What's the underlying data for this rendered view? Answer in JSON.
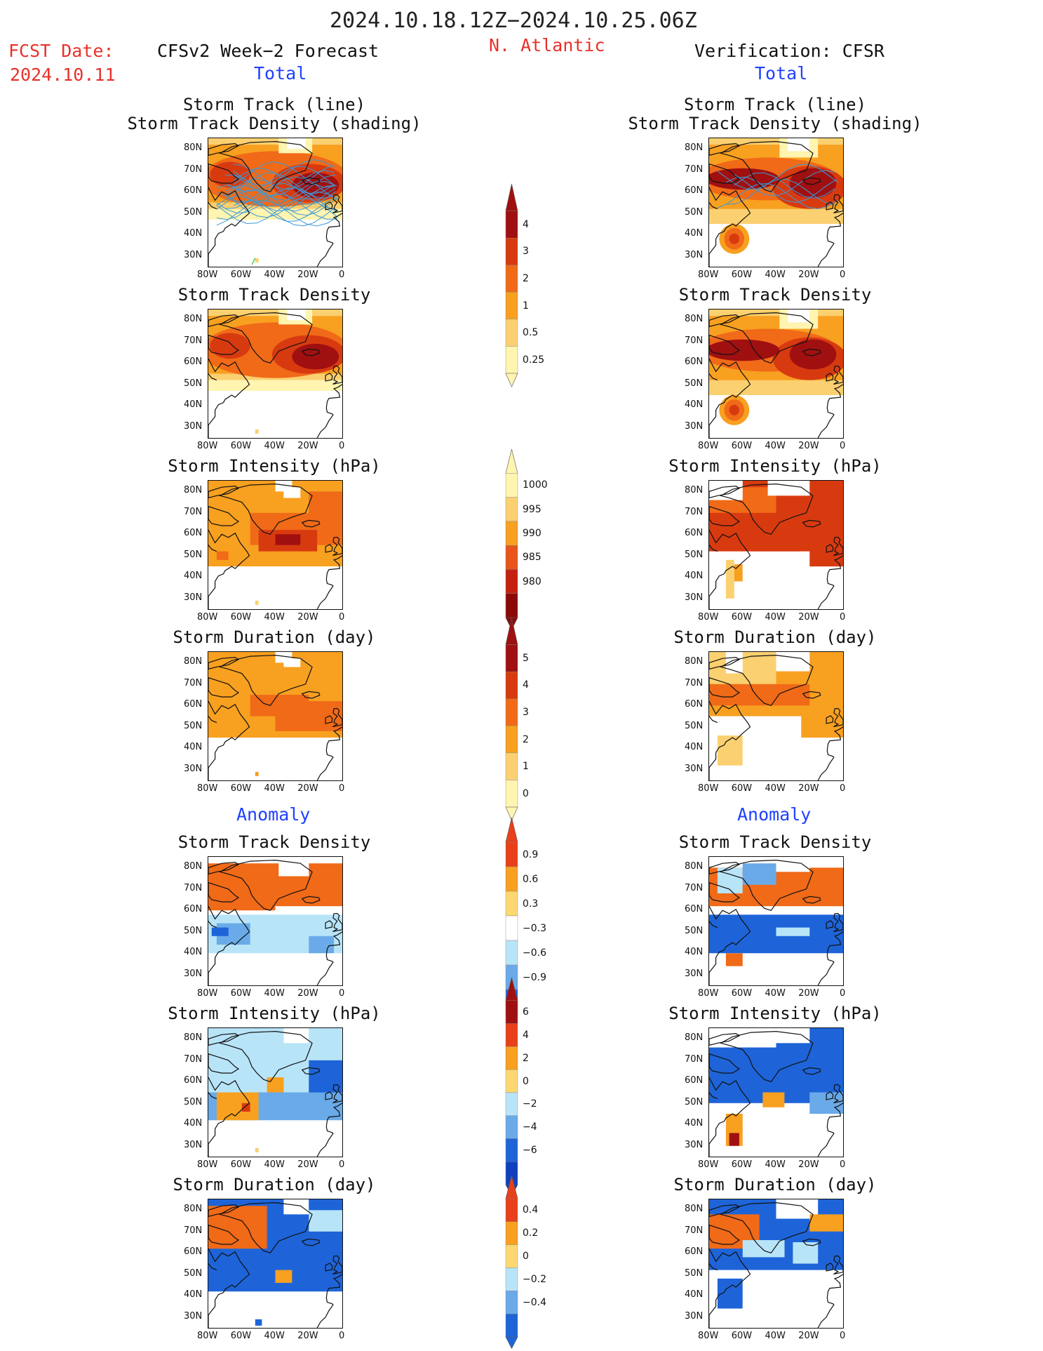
{
  "header": {
    "period": "2024.10.18.12Z−2024.10.25.06Z",
    "fcst_label": "FCST Date:",
    "fcst_date": "2024.10.11",
    "forecast_title": "CFSv2 Week−2 Forecast",
    "region": "N. Atlantic",
    "verification_title": "Verification: CFSR",
    "total_label": "Total",
    "anomaly_label": "Anomaly"
  },
  "axes": {
    "lat_ticks": [
      "80N",
      "70N",
      "60N",
      "50N",
      "40N",
      "30N"
    ],
    "lon_ticks": [
      "80W",
      "60W",
      "40W",
      "20W",
      "0"
    ]
  },
  "panel_titles": {
    "track_line": "Storm Track (line)",
    "track_shading": "Storm Track Density (shading)",
    "track_density": "Storm Track Density",
    "intensity": "Storm Intensity (hPa)",
    "duration": "Storm Duration (day)"
  },
  "colorbars": [
    {
      "name": "density-total",
      "labels": [
        "4",
        "3",
        "2",
        "1",
        "0.5",
        "0.25"
      ],
      "colors": [
        "#a01010",
        "#d83a10",
        "#f06a18",
        "#f8a020",
        "#fbd070",
        "#fff4b0"
      ]
    },
    {
      "name": "intensity-total",
      "labels": [
        "1000",
        "995",
        "990",
        "985",
        "980"
      ],
      "colors": [
        "#fff4b0",
        "#fbd070",
        "#f8a020",
        "#e8541a",
        "#c42010",
        "#8a0a08"
      ]
    },
    {
      "name": "duration-total",
      "labels": [
        "5",
        "4",
        "3",
        "2",
        "1",
        "0"
      ],
      "colors": [
        "#a01010",
        "#d83a10",
        "#f06a18",
        "#f8a020",
        "#fbd070",
        "#fff4b0"
      ]
    },
    {
      "name": "density-anom",
      "labels": [
        "0.9",
        "0.6",
        "0.3",
        "−0.3",
        "−0.6",
        "−0.9"
      ],
      "colors": [
        "#e8401a",
        "#f8a020",
        "#fbd870",
        "#ffffff",
        "#b8e4f8",
        "#6aaae8",
        "#1e64d8"
      ]
    },
    {
      "name": "intensity-anom",
      "labels": [
        "6",
        "4",
        "2",
        "0",
        "−2",
        "−4",
        "−6"
      ],
      "colors": [
        "#a01010",
        "#e8401a",
        "#f8a020",
        "#fbd870",
        "#b8e4f8",
        "#6aaae8",
        "#1e64d8",
        "#1040c0"
      ]
    },
    {
      "name": "duration-anom",
      "labels": [
        "0.4",
        "0.2",
        "0",
        "−0.2",
        "−0.4"
      ],
      "colors": [
        "#e8401a",
        "#f8a020",
        "#fbd870",
        "#b8e4f8",
        "#6aaae8",
        "#1e64d8"
      ]
    }
  ],
  "chart_data": {
    "type": "heatmap",
    "title": "2024.10.18.12Z−2024.10.25.06Z",
    "region": "N. Atlantic",
    "xlim": [
      "80W",
      "0"
    ],
    "ylim": [
      "25N",
      "85N"
    ],
    "panels": [
      "Storm Track (line) / Storm Track Density (shading) — Forecast Total",
      "Storm Track Density — Forecast Total",
      "Storm Intensity (hPa) — Forecast Total",
      "Storm Duration (day) — Forecast Total",
      "Storm Track Density — Forecast Anomaly",
      "Storm Intensity (hPa) — Forecast Anomaly",
      "Storm Duration (day) — Forecast Anomaly",
      "Storm Track (line) / Storm Track Density (shading) — CFSR Total",
      "Storm Track Density — CFSR Total",
      "Storm Intensity (hPa) — CFSR Total",
      "Storm Duration (day) — CFSR Total",
      "Storm Track Density — CFSR Anomaly",
      "Storm Intensity (hPa) — CFSR Anomaly",
      "Storm Duration (day) — CFSR Anomaly"
    ]
  }
}
